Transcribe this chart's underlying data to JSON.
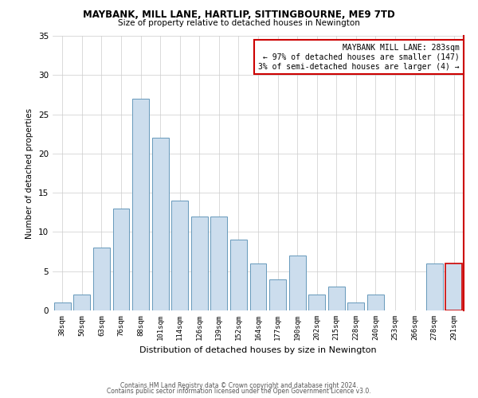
{
  "title1": "MAYBANK, MILL LANE, HARTLIP, SITTINGBOURNE, ME9 7TD",
  "title2": "Size of property relative to detached houses in Newington",
  "xlabel": "Distribution of detached houses by size in Newington",
  "ylabel": "Number of detached properties",
  "categories": [
    "38sqm",
    "50sqm",
    "63sqm",
    "76sqm",
    "88sqm",
    "101sqm",
    "114sqm",
    "126sqm",
    "139sqm",
    "152sqm",
    "164sqm",
    "177sqm",
    "190sqm",
    "202sqm",
    "215sqm",
    "228sqm",
    "240sqm",
    "253sqm",
    "266sqm",
    "278sqm",
    "291sqm"
  ],
  "values": [
    1,
    2,
    8,
    13,
    27,
    22,
    14,
    12,
    12,
    9,
    6,
    4,
    7,
    2,
    3,
    1,
    2,
    0,
    0,
    6,
    6
  ],
  "bar_color": "#ccdded",
  "bar_edge_color": "#6699bb",
  "highlight_bar_index": 20,
  "highlight_edge_color": "#cc0000",
  "vline_color": "#cc0000",
  "annotation_text": "MAYBANK MILL LANE: 283sqm\n← 97% of detached houses are smaller (147)\n3% of semi-detached houses are larger (4) →",
  "annotation_box_color": "#cc0000",
  "footer1": "Contains HM Land Registry data © Crown copyright and database right 2024.",
  "footer2": "Contains public sector information licensed under the Open Government Licence v3.0.",
  "ylim": [
    0,
    35
  ],
  "yticks": [
    0,
    5,
    10,
    15,
    20,
    25,
    30,
    35
  ],
  "background_color": "#ffffff",
  "grid_color": "#cccccc"
}
